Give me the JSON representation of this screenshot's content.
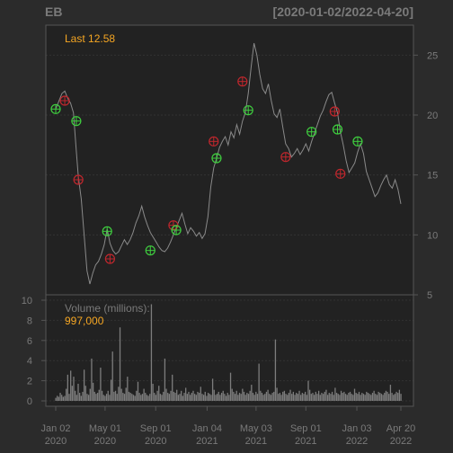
{
  "header": {
    "symbol": "EB",
    "date_range": "[2020-01-02/2022-04-20]"
  },
  "colors": {
    "background": "#2b2b2b",
    "panel": "#222222",
    "grid": "#333333",
    "price_line": "#8a8a8a",
    "volume_bar": "#7d7d7d",
    "text": "#7a7a7a",
    "accent": "#f5a623",
    "buy_marker": "#3fcf3f",
    "sell_marker": "#c0272d"
  },
  "chart_data": [
    {
      "type": "line",
      "panel": "price",
      "legend_text": "Last 12.58",
      "yaxis_side": "right",
      "ylim": [
        5,
        27.5
      ],
      "yticks": [
        5,
        10,
        15,
        20,
        25
      ],
      "grid": true,
      "series": [
        {
          "x": [
            "2020-01-02",
            "2020-01-10",
            "2020-01-17",
            "2020-01-24",
            "2020-01-31",
            "2020-02-07",
            "2020-02-14",
            "2020-02-21",
            "2020-02-26",
            "2020-03-04",
            "2020-03-11",
            "2020-03-18",
            "2020-03-25",
            "2020-04-01",
            "2020-04-08",
            "2020-04-15",
            "2020-04-22",
            "2020-04-29",
            "2020-05-06",
            "2020-05-13",
            "2020-05-20",
            "2020-05-27",
            "2020-06-03",
            "2020-06-10",
            "2020-06-17",
            "2020-06-24",
            "2020-07-01",
            "2020-07-08",
            "2020-07-15",
            "2020-07-22",
            "2020-07-29",
            "2020-08-05",
            "2020-08-12",
            "2020-08-19",
            "2020-08-26",
            "2020-09-02",
            "2020-09-09",
            "2020-09-16",
            "2020-09-23",
            "2020-09-30",
            "2020-10-07",
            "2020-10-14",
            "2020-10-21",
            "2020-10-28",
            "2020-11-04",
            "2020-11-11",
            "2020-11-18",
            "2020-11-25",
            "2020-12-02",
            "2020-12-09",
            "2020-12-16",
            "2020-12-23",
            "2020-12-30",
            "2021-01-06",
            "2021-01-13",
            "2021-01-20",
            "2021-01-27",
            "2021-02-03",
            "2021-02-10",
            "2021-02-17",
            "2021-02-24",
            "2021-03-03",
            "2021-03-10",
            "2021-03-17",
            "2021-03-24",
            "2021-03-31",
            "2021-04-07",
            "2021-04-14",
            "2021-04-21",
            "2021-04-28",
            "2021-05-05",
            "2021-05-12",
            "2021-05-19",
            "2021-05-26",
            "2021-06-02",
            "2021-06-09",
            "2021-06-16",
            "2021-06-23",
            "2021-06-30",
            "2021-07-07",
            "2021-07-14",
            "2021-07-21",
            "2021-07-28",
            "2021-08-04",
            "2021-08-11",
            "2021-08-18",
            "2021-08-25",
            "2021-09-01",
            "2021-09-08",
            "2021-09-15",
            "2021-09-22",
            "2021-09-29",
            "2021-10-06",
            "2021-10-13",
            "2021-10-20",
            "2021-10-27",
            "2021-11-03",
            "2021-11-10",
            "2021-11-17",
            "2021-11-24",
            "2021-12-01",
            "2021-12-08",
            "2021-12-15",
            "2021-12-22",
            "2021-12-29",
            "2022-01-05",
            "2022-01-12",
            "2022-01-19",
            "2022-01-26",
            "2022-02-02",
            "2022-02-09",
            "2022-02-16",
            "2022-02-23",
            "2022-03-02",
            "2022-03-09",
            "2022-03-16",
            "2022-03-23",
            "2022-03-30",
            "2022-04-06",
            "2022-04-13",
            "2022-04-20"
          ],
          "values": [
            20.5,
            21.2,
            21.8,
            22.0,
            21.4,
            21.0,
            20.2,
            17.0,
            14.8,
            13.0,
            10.0,
            7.0,
            5.9,
            6.8,
            7.5,
            7.8,
            8.4,
            9.2,
            10.5,
            9.3,
            8.7,
            8.4,
            8.6,
            9.1,
            9.6,
            9.2,
            9.6,
            10.2,
            11.0,
            11.6,
            12.4,
            11.5,
            10.8,
            10.2,
            9.8,
            9.4,
            9.0,
            8.7,
            8.6,
            8.9,
            9.4,
            10.0,
            10.6,
            11.2,
            11.8,
            10.9,
            10.1,
            10.6,
            10.3,
            9.9,
            10.2,
            9.7,
            10.1,
            11.5,
            14.0,
            15.6,
            16.4,
            17.3,
            17.8,
            18.2,
            17.5,
            18.6,
            18.1,
            19.2,
            18.4,
            19.5,
            20.2,
            21.8,
            24.0,
            26.0,
            25.0,
            23.4,
            22.2,
            21.8,
            22.6,
            21.2,
            20.1,
            19.8,
            20.5,
            19.0,
            17.6,
            17.2,
            16.5,
            16.8,
            17.2,
            16.7,
            17.1,
            17.6,
            17.0,
            17.8,
            18.5,
            19.2,
            19.9,
            20.4,
            21.1,
            21.7,
            21.9,
            21.0,
            20.2,
            18.6,
            17.5,
            16.2,
            15.2,
            15.6,
            16.0,
            16.9,
            17.6,
            16.8,
            15.3,
            14.6,
            13.9,
            13.2,
            13.5,
            14.1,
            14.6,
            15.0,
            14.2,
            13.9,
            14.6,
            13.8,
            12.58
          ]
        }
      ],
      "markers": [
        {
          "date": "2020-01-02",
          "value": 20.5,
          "kind": "buy"
        },
        {
          "date": "2020-01-24",
          "value": 21.2,
          "kind": "sell"
        },
        {
          "date": "2020-02-21",
          "value": 19.5,
          "kind": "buy"
        },
        {
          "date": "2020-02-26",
          "value": 14.6,
          "kind": "sell"
        },
        {
          "date": "2020-05-06",
          "value": 10.3,
          "kind": "buy"
        },
        {
          "date": "2020-05-13",
          "value": 8.0,
          "kind": "sell"
        },
        {
          "date": "2020-08-19",
          "value": 8.7,
          "kind": "buy"
        },
        {
          "date": "2020-10-14",
          "value": 10.8,
          "kind": "sell"
        },
        {
          "date": "2020-10-21",
          "value": 10.4,
          "kind": "buy"
        },
        {
          "date": "2021-01-20",
          "value": 17.8,
          "kind": "sell"
        },
        {
          "date": "2021-01-27",
          "value": 16.4,
          "kind": "buy"
        },
        {
          "date": "2021-03-31",
          "value": 22.8,
          "kind": "sell"
        },
        {
          "date": "2021-04-14",
          "value": 20.4,
          "kind": "buy"
        },
        {
          "date": "2021-07-14",
          "value": 16.5,
          "kind": "sell"
        },
        {
          "date": "2021-09-15",
          "value": 18.6,
          "kind": "buy"
        },
        {
          "date": "2021-11-10",
          "value": 20.3,
          "kind": "sell"
        },
        {
          "date": "2021-11-17",
          "value": 18.8,
          "kind": "buy"
        },
        {
          "date": "2021-11-24",
          "value": 15.1,
          "kind": "sell"
        },
        {
          "date": "2022-01-05",
          "value": 17.8,
          "kind": "buy"
        }
      ]
    },
    {
      "type": "bar",
      "panel": "volume",
      "legend_label": "Volume (millions):",
      "legend_value": "997,000",
      "yaxis_side": "left",
      "ylim": [
        0,
        10
      ],
      "yticks": [
        0,
        2,
        4,
        6,
        8,
        10
      ],
      "grid": true,
      "series": [
        {
          "name": "Volume",
          "x_start": "2020-01-02",
          "x_end": "2022-04-20",
          "values": [
            0.3,
            0.5,
            0.4,
            0.8,
            0.6,
            0.4,
            0.5,
            1.2,
            2.6,
            0.7,
            3.0,
            1.5,
            2.4,
            1.0,
            0.6,
            1.7,
            0.8,
            0.5,
            0.9,
            3.1,
            1.5,
            0.7,
            0.6,
            1.2,
            4.2,
            1.8,
            0.9,
            0.7,
            0.8,
            1.1,
            3.3,
            1.0,
            0.6,
            0.5,
            0.7,
            1.0,
            0.6,
            2.1,
            4.9,
            0.9,
            1.0,
            0.7,
            1.4,
            7.3,
            1.2,
            0.8,
            0.7,
            1.3,
            2.4,
            0.9,
            0.8,
            0.7,
            0.6,
            0.5,
            1.0,
            1.9,
            0.8,
            0.6,
            0.7,
            1.2,
            0.8,
            0.6,
            0.5,
            0.7,
            9.6,
            1.7,
            0.8,
            0.6,
            1.0,
            1.5,
            0.7,
            0.6,
            0.9,
            4.2,
            1.2,
            0.8,
            0.7,
            1.0,
            2.6,
            0.9,
            0.8,
            1.1,
            0.6,
            0.7,
            1.0,
            0.5,
            0.8,
            1.3,
            0.7,
            0.9,
            0.6,
            0.8,
            1.0,
            0.7,
            0.6,
            0.9,
            0.8,
            1.4,
            0.7,
            0.6,
            0.9,
            0.5,
            0.8,
            0.7,
            0.6,
            2.2,
            1.1,
            0.6,
            0.7,
            0.9,
            0.6,
            0.8,
            1.0,
            0.7,
            0.5,
            0.8,
            0.6,
            2.8,
            1.2,
            0.9,
            0.7,
            1.0,
            0.6,
            0.8,
            0.7,
            1.2,
            0.9,
            0.6,
            0.8,
            0.7,
            1.0,
            1.6,
            0.8,
            0.6,
            0.9,
            0.7,
            3.7,
            1.0,
            0.8,
            0.6,
            0.7,
            0.9,
            1.1,
            0.7,
            0.6,
            0.8,
            0.9,
            6.1,
            1.3,
            0.7,
            0.8,
            0.6,
            0.9,
            1.0,
            0.7,
            0.6,
            0.8,
            1.1,
            0.7,
            0.9,
            0.6,
            0.8,
            0.7,
            1.0,
            0.6,
            0.8,
            0.7,
            0.9,
            0.6,
            2.0,
            1.1,
            0.7,
            0.8,
            0.6,
            0.9,
            0.7,
            1.0,
            0.6,
            0.8,
            0.7,
            0.9,
            1.1,
            0.6,
            0.8,
            0.7,
            0.9,
            0.6,
            1.3,
            0.8,
            0.7,
            0.6,
            1.0,
            0.8,
            0.9,
            0.7,
            0.6,
            0.8,
            0.9,
            0.7,
            0.6,
            1.2,
            0.8,
            0.7,
            0.9,
            0.6,
            0.8,
            0.7,
            0.6,
            0.9,
            0.8,
            0.7,
            0.6,
            0.8,
            1.0,
            0.7,
            0.6,
            0.9,
            0.8,
            0.7,
            0.6,
            0.8,
            1.0,
            0.9,
            0.7,
            1.6,
            0.8,
            0.6,
            0.7,
            0.9,
            0.8,
            1.1,
            0.7
          ]
        }
      ]
    }
  ],
  "x_axis": {
    "ticks": [
      {
        "date": "2020-01-02",
        "line1": "Jan 02",
        "line2": "2020"
      },
      {
        "date": "2020-05-01",
        "line1": "May 01",
        "line2": "2020"
      },
      {
        "date": "2020-09-01",
        "line1": "Sep 01",
        "line2": "2020"
      },
      {
        "date": "2021-01-04",
        "line1": "Jan 04",
        "line2": "2021"
      },
      {
        "date": "2021-05-03",
        "line1": "May 03",
        "line2": "2021"
      },
      {
        "date": "2021-09-01",
        "line1": "Sep 01",
        "line2": "2021"
      },
      {
        "date": "2022-01-03",
        "line1": "Jan 03",
        "line2": "2022"
      },
      {
        "date": "2022-04-20",
        "line1": "Apr 20",
        "line2": "2022"
      }
    ]
  }
}
